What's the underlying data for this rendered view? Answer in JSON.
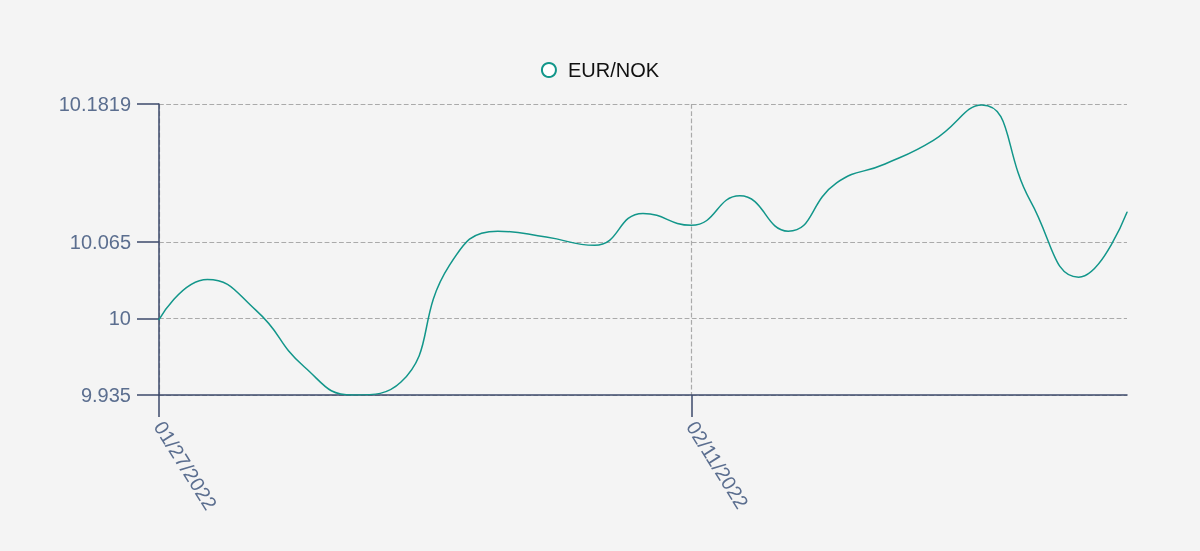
{
  "chart_data": {
    "type": "line",
    "categories": [
      "01/27/2022",
      null,
      null,
      null,
      null,
      null,
      null,
      null,
      null,
      null,
      null,
      "02/11/2022",
      null,
      null,
      null,
      null,
      null,
      null,
      null,
      null,
      null
    ],
    "series": [
      {
        "name": "EUR/NOK",
        "color": "#12968a",
        "values": [
          9.999,
          10.033,
          10.007,
          9.959,
          9.935,
          9.946,
          10.045,
          10.074,
          10.069,
          10.062,
          10.089,
          10.079,
          10.104,
          10.074,
          10.115,
          10.131,
          10.151,
          10.181,
          10.1,
          10.035,
          10.09
        ]
      }
    ],
    "ylim": [
      9.935,
      10.1819
    ],
    "yticks": [
      9.935,
      10,
      10.065,
      10.1819
    ],
    "grid": true,
    "legend": "top",
    "marker": "none",
    "line_style": "solid"
  }
}
